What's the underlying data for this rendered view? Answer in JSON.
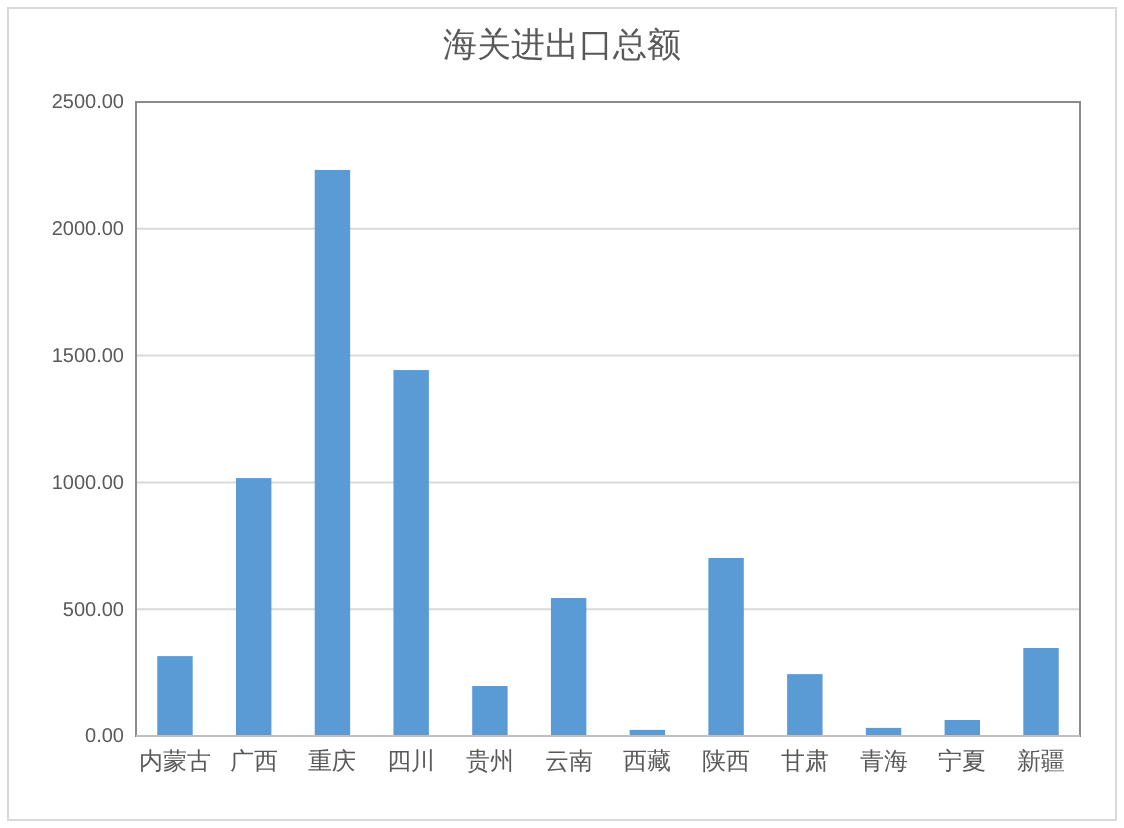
{
  "chart_data": {
    "type": "bar",
    "title": "海关进出口总额",
    "categories": [
      "内蒙古",
      "广西",
      "重庆",
      "四川",
      "贵州",
      "云南",
      "西藏",
      "陕西",
      "甘肃",
      "青海",
      "宁夏",
      "新疆"
    ],
    "values": [
      315,
      1017,
      2232,
      1443,
      197,
      544,
      24,
      702,
      244,
      32,
      63,
      347
    ],
    "color": "#5b9bd5",
    "ylim": [
      0,
      2500
    ],
    "yticks": [
      {
        "value": 0,
        "label": "0.00"
      },
      {
        "value": 500,
        "label": "500.00"
      },
      {
        "value": 1000,
        "label": "1000.00"
      },
      {
        "value": 1500,
        "label": "1500.00"
      },
      {
        "value": 2000,
        "label": "2000.00"
      },
      {
        "value": 2500,
        "label": "2500.00"
      }
    ],
    "grid": "y"
  }
}
